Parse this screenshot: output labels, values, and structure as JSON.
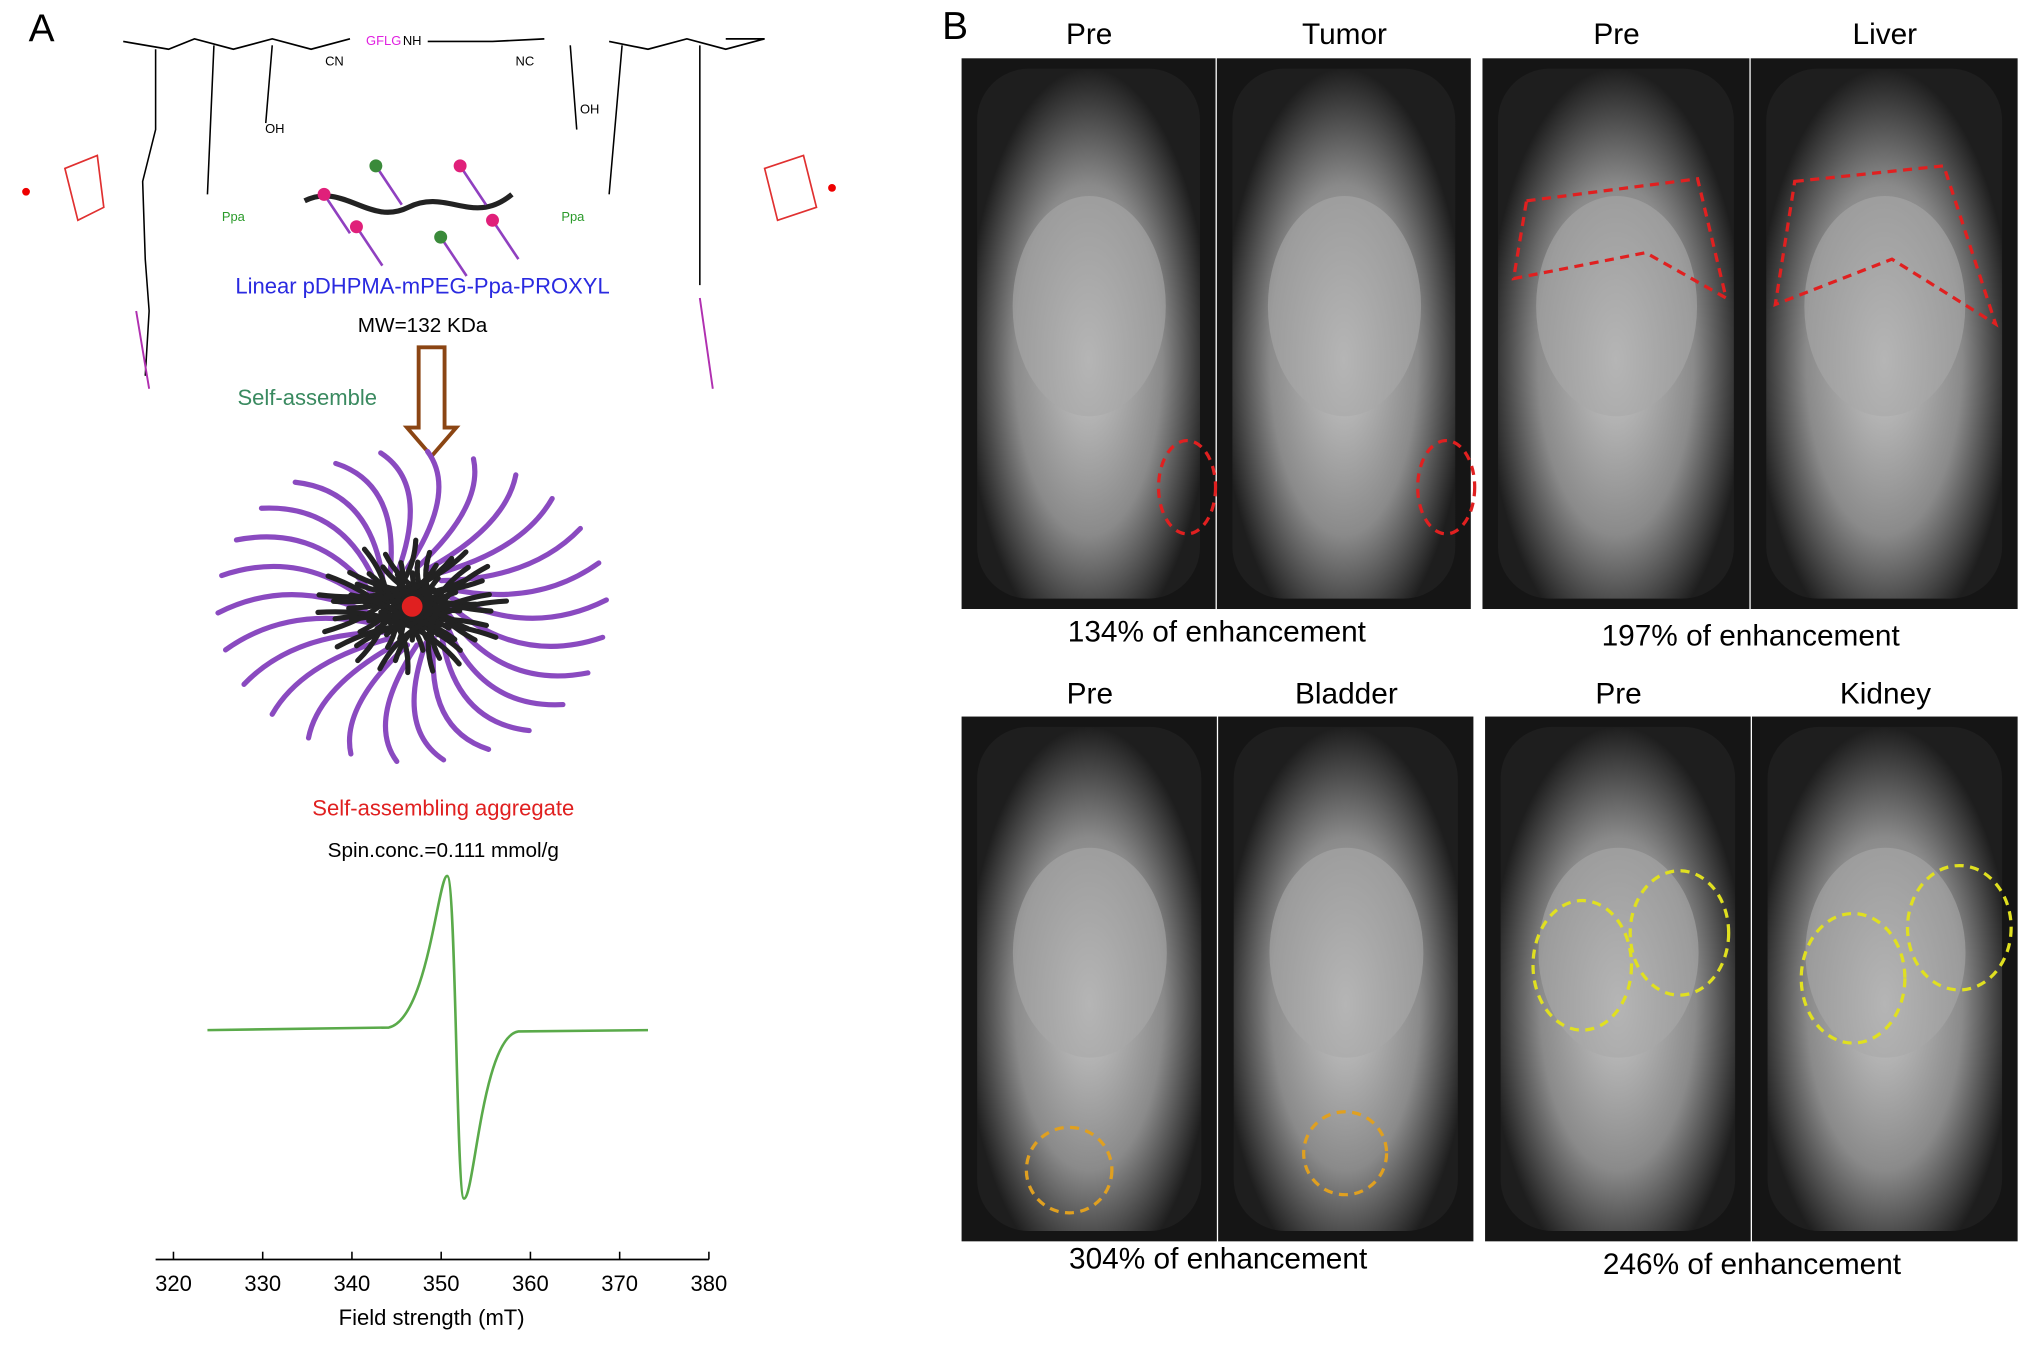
{
  "panels": {
    "a": "A",
    "b": "B"
  },
  "chemistry": {
    "polymer_name": "Linear pDHPMA-mPEG-Ppa-PROXYL",
    "mw": "MW=132 KDa",
    "arrow_label": "Self-assemble",
    "aggregate_label": "Self-assembling aggregate",
    "spin_conc": "Spin.conc.=0.111 mmol/g",
    "structure_labels": [
      "GFLG",
      "Ppa",
      "Ppa",
      "NH",
      "CN",
      "NC",
      "OH",
      "OH"
    ]
  },
  "chart_data": {
    "type": "line",
    "xlabel": "Field strength (mT)",
    "xlim": [
      318,
      380
    ],
    "xticks": [
      320,
      330,
      340,
      350,
      360,
      370,
      380
    ]
  },
  "mri": [
    {
      "labels": [
        "Pre",
        "Tumor"
      ],
      "caption": "134% of enhancement"
    },
    {
      "labels": [
        "Pre",
        "Liver"
      ],
      "caption": "197% of enhancement"
    },
    {
      "labels": [
        "Pre",
        "Bladder"
      ],
      "caption": "304% of enhancement"
    },
    {
      "labels": [
        "Pre",
        "Kidney"
      ],
      "caption": "246% of enhancement"
    }
  ]
}
